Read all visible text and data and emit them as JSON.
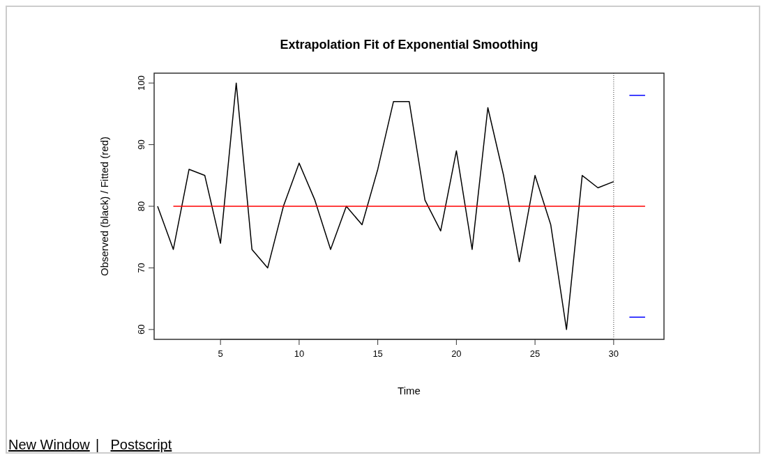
{
  "chart_data": {
    "type": "line",
    "title": "Extrapolation Fit of Exponential Smoothing",
    "xlabel": "Time",
    "ylabel": "Observed (black) / Fitted (red)",
    "series": [
      {
        "color": "#000000",
        "x": [
          1,
          2,
          3,
          4,
          5,
          6,
          7,
          8,
          9,
          10,
          11,
          12,
          13,
          14,
          15,
          16,
          17,
          18,
          19,
          20,
          21,
          22,
          23,
          24,
          25,
          26,
          27,
          28,
          29,
          30
        ],
        "values": [
          80,
          73,
          86,
          85,
          74,
          100,
          73,
          70,
          80,
          87,
          81,
          73,
          80,
          77,
          86,
          97,
          97,
          81,
          76,
          89,
          73,
          96,
          85,
          71,
          85,
          77,
          60,
          85,
          83,
          84
        ]
      },
      {
        "color": "#ff0000",
        "x": [
          2,
          32
        ],
        "values": [
          80,
          80
        ]
      },
      {
        "color": "#0000ff",
        "x": [
          31,
          32
        ],
        "values": [
          98,
          98
        ]
      },
      {
        "color": "#0000ff",
        "x": [
          31,
          32
        ],
        "values": [
          62,
          62
        ]
      }
    ],
    "xlim": [
      0.78,
      33.2
    ],
    "ylim": [
      58.4,
      101.6
    ],
    "xticks": [
      5,
      10,
      15,
      20,
      25,
      30
    ],
    "yticks": [
      60,
      70,
      80,
      90,
      100
    ],
    "ref_lines": [
      {
        "axis": "x",
        "value": 30,
        "color": "#555555",
        "line_style": "dotted"
      }
    ],
    "grid": false,
    "marker": "none",
    "line_style": "solid",
    "annotations": [
      "New Window",
      "|",
      "Postscript"
    ]
  }
}
